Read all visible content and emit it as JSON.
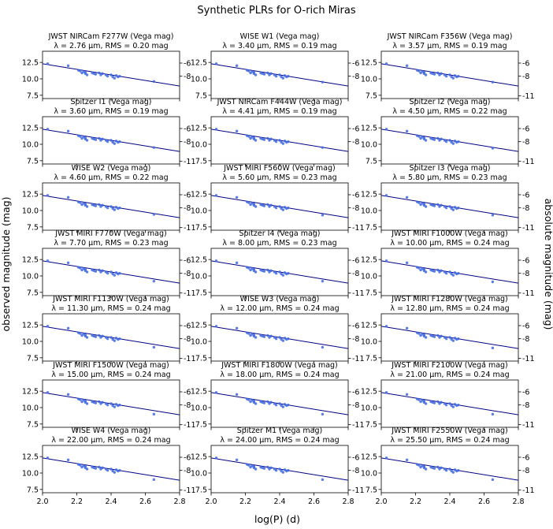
{
  "suptitle": "Synthetic PLRs for O-rich Miras",
  "xlabel": "log(P) (d)",
  "ylabel_left": "observed magnitude (mag)",
  "ylabel_right": "absolute magnitude (mag)",
  "colors": {
    "points": "#4169e1",
    "fit_line": "#000080",
    "axes": "#000000"
  },
  "chart_data": {
    "type": "scatter",
    "layout": {
      "rows": 7,
      "cols": 3
    },
    "x": [
      2.03,
      2.15,
      2.21,
      2.22,
      2.23,
      2.24,
      2.25,
      2.25,
      2.26,
      2.29,
      2.3,
      2.31,
      2.33,
      2.34,
      2.35,
      2.37,
      2.38,
      2.4,
      2.41,
      2.42,
      2.43,
      2.44,
      2.45,
      2.65
    ],
    "xlim": [
      2.0,
      2.8
    ],
    "xticks": [
      2.0,
      2.2,
      2.4,
      2.6,
      2.8
    ],
    "xticklabels": [
      "2.0",
      "2.2",
      "2.4",
      "2.6",
      "2.8"
    ],
    "ylim": [
      14.2,
      7.0
    ],
    "yticks": [
      7.5,
      10.0,
      12.5
    ],
    "yticklabels": [
      "7.5",
      "10.0",
      "12.5"
    ],
    "fit": {
      "x0": 2.0,
      "y0": 12.3,
      "x1": 2.8,
      "y1": 8.9
    },
    "abs_offset": 18.4,
    "right_ticks": [
      -11,
      -8,
      -6
    ],
    "right_ticklabels": [
      "-11",
      "-8",
      "-6"
    ],
    "panels": [
      {
        "title": "JWST NIRCam F277W (Vega mag)",
        "subtitle": "λ = 2.76 μm, RMS = 0.20 mag",
        "show_top_tick": false,
        "y": [
          12.3,
          12.0,
          11.3,
          11.2,
          10.9,
          11.1,
          10.8,
          11.0,
          10.6,
          10.9,
          10.8,
          10.7,
          10.9,
          10.6,
          10.8,
          10.6,
          10.4,
          10.6,
          10.3,
          10.1,
          10.5,
          10.3,
          10.4,
          9.6
        ]
      },
      {
        "title": "WISE W1 (Vega mag)",
        "subtitle": "λ = 3.40 μm, RMS = 0.19 mag",
        "show_top_tick": false,
        "y": [
          12.3,
          12.0,
          11.3,
          11.2,
          10.9,
          11.1,
          10.8,
          11.0,
          10.6,
          10.9,
          10.8,
          10.7,
          10.9,
          10.6,
          10.8,
          10.6,
          10.4,
          10.6,
          10.3,
          10.1,
          10.5,
          10.3,
          10.4,
          9.5
        ]
      },
      {
        "title": "JWST NIRCam F356W (Vega mag)",
        "subtitle": "λ = 3.57 μm, RMS = 0.19 mag",
        "show_top_tick": true,
        "y": [
          12.3,
          12.0,
          11.3,
          11.2,
          10.9,
          11.1,
          10.8,
          11.0,
          10.6,
          10.9,
          10.8,
          10.7,
          10.9,
          10.6,
          10.8,
          10.6,
          10.4,
          10.6,
          10.3,
          10.1,
          10.5,
          10.3,
          10.4,
          9.5
        ]
      },
      {
        "title": "Spitzer I1 (Vega mag)",
        "subtitle": "λ = 3.60 μm, RMS = 0.19 mag",
        "show_top_tick": true,
        "y": [
          12.3,
          12.0,
          11.3,
          11.2,
          10.9,
          11.1,
          10.8,
          11.0,
          10.6,
          10.9,
          10.8,
          10.7,
          10.9,
          10.6,
          10.8,
          10.6,
          10.4,
          10.6,
          10.3,
          10.1,
          10.5,
          10.3,
          10.4,
          9.5
        ]
      },
      {
        "title": "JWST NIRCam F444W (Vega mag)",
        "subtitle": "λ = 4.41 μm, RMS = 0.19 mag",
        "show_top_tick": false,
        "y": [
          12.3,
          12.0,
          11.3,
          11.2,
          10.9,
          11.1,
          10.8,
          11.0,
          10.6,
          10.9,
          10.8,
          10.7,
          10.9,
          10.6,
          10.8,
          10.6,
          10.4,
          10.6,
          10.3,
          10.1,
          10.5,
          10.3,
          10.4,
          9.5
        ]
      },
      {
        "title": "Spitzer I2 (Vega mag)",
        "subtitle": "λ = 4.50 μm, RMS = 0.22 mag",
        "show_top_tick": true,
        "y": [
          12.3,
          12.0,
          11.3,
          11.2,
          10.9,
          11.1,
          10.8,
          11.0,
          10.6,
          10.9,
          10.8,
          10.7,
          10.9,
          10.6,
          10.8,
          10.6,
          10.4,
          10.6,
          10.3,
          10.1,
          10.5,
          10.3,
          10.4,
          9.4
        ]
      },
      {
        "title": "WISE W2 (Vega mag)",
        "subtitle": "λ = 4.60 μm, RMS = 0.22 mag",
        "show_top_tick": true,
        "y": [
          12.3,
          12.0,
          11.3,
          11.2,
          10.9,
          11.1,
          10.8,
          11.0,
          10.6,
          10.9,
          10.8,
          10.7,
          10.9,
          10.6,
          10.8,
          10.6,
          10.4,
          10.6,
          10.3,
          10.1,
          10.5,
          10.3,
          10.4,
          9.4
        ]
      },
      {
        "title": "JWST MIRI F560W (Vega mag)",
        "subtitle": "λ = 5.60 μm, RMS = 0.23 mag",
        "show_top_tick": true,
        "y": [
          12.3,
          12.0,
          11.3,
          11.2,
          10.9,
          11.1,
          10.8,
          11.0,
          10.6,
          10.9,
          10.8,
          10.7,
          10.9,
          10.6,
          10.8,
          10.6,
          10.4,
          10.6,
          10.3,
          10.1,
          10.5,
          10.3,
          10.4,
          9.3
        ]
      },
      {
        "title": "Spitzer I3 (Vega mag)",
        "subtitle": "λ = 5.80 μm, RMS = 0.23 mag",
        "show_top_tick": true,
        "y": [
          12.3,
          12.0,
          11.3,
          11.2,
          10.9,
          11.1,
          10.8,
          11.0,
          10.6,
          10.9,
          10.8,
          10.7,
          10.9,
          10.6,
          10.8,
          10.6,
          10.4,
          10.6,
          10.3,
          10.1,
          10.5,
          10.3,
          10.4,
          9.3
        ]
      },
      {
        "title": "JWST MIRI F770W (Vega mag)",
        "subtitle": "λ = 7.70 μm, RMS = 0.23 mag",
        "show_top_tick": true,
        "y": [
          12.3,
          12.0,
          11.3,
          11.2,
          10.9,
          11.1,
          10.8,
          11.0,
          10.6,
          10.9,
          10.8,
          10.7,
          10.9,
          10.6,
          10.8,
          10.6,
          10.4,
          10.6,
          10.3,
          10.1,
          10.5,
          10.3,
          10.4,
          9.2
        ]
      },
      {
        "title": "Spitzer I4 (Vega mag)",
        "subtitle": "λ = 8.00 μm, RMS = 0.23 mag",
        "show_top_tick": true,
        "y": [
          12.3,
          12.0,
          11.3,
          11.2,
          10.9,
          11.1,
          10.8,
          11.0,
          10.6,
          10.9,
          10.8,
          10.7,
          10.9,
          10.6,
          10.8,
          10.6,
          10.4,
          10.6,
          10.3,
          10.1,
          10.5,
          10.3,
          10.4,
          9.2
        ]
      },
      {
        "title": "JWST MIRI F1000W (Vega mag)",
        "subtitle": "λ = 10.00 μm, RMS = 0.24 mag",
        "show_top_tick": true,
        "y": [
          12.3,
          12.0,
          11.3,
          11.2,
          10.9,
          11.1,
          10.8,
          11.0,
          10.6,
          10.9,
          10.8,
          10.7,
          10.9,
          10.6,
          10.8,
          10.6,
          10.4,
          10.6,
          10.3,
          10.1,
          10.5,
          10.3,
          10.4,
          9.1
        ]
      },
      {
        "title": "JWST MIRI F1130W (Vega mag)",
        "subtitle": "λ = 11.30 μm, RMS = 0.24 mag",
        "show_top_tick": true,
        "y": [
          12.3,
          12.0,
          11.3,
          11.2,
          10.9,
          11.1,
          10.8,
          11.0,
          10.6,
          10.9,
          10.8,
          10.7,
          10.9,
          10.6,
          10.8,
          10.6,
          10.4,
          10.6,
          10.3,
          10.1,
          10.5,
          10.3,
          10.4,
          9.1
        ]
      },
      {
        "title": "WISE W3 (Vega mag)",
        "subtitle": "λ = 12.00 μm, RMS = 0.24 mag",
        "show_top_tick": true,
        "y": [
          12.3,
          12.0,
          11.3,
          11.2,
          10.9,
          11.1,
          10.8,
          11.0,
          10.6,
          10.9,
          10.8,
          10.7,
          10.9,
          10.6,
          10.8,
          10.6,
          10.4,
          10.6,
          10.3,
          10.1,
          10.5,
          10.3,
          10.4,
          9.1
        ]
      },
      {
        "title": "JWST MIRI F1280W (Vega mag)",
        "subtitle": "λ = 12.80 μm, RMS = 0.24 mag",
        "show_top_tick": true,
        "y": [
          12.3,
          12.0,
          11.3,
          11.2,
          10.9,
          11.1,
          10.8,
          11.0,
          10.6,
          10.9,
          10.8,
          10.7,
          10.9,
          10.6,
          10.8,
          10.6,
          10.4,
          10.6,
          10.3,
          10.1,
          10.5,
          10.3,
          10.4,
          9.0
        ]
      },
      {
        "title": "JWST MIRI F1500W (Vega mag)",
        "subtitle": "λ = 15.00 μm, RMS = 0.24 mag",
        "show_top_tick": true,
        "y": [
          12.3,
          12.0,
          11.3,
          11.2,
          10.9,
          11.1,
          10.8,
          11.0,
          10.6,
          10.9,
          10.8,
          10.7,
          10.9,
          10.6,
          10.8,
          10.6,
          10.4,
          10.6,
          10.3,
          10.1,
          10.5,
          10.3,
          10.4,
          9.0
        ]
      },
      {
        "title": "JWST MIRI F1800W (Vega mag)",
        "subtitle": "λ = 18.00 μm, RMS = 0.24 mag",
        "show_top_tick": true,
        "y": [
          12.3,
          12.0,
          11.3,
          11.2,
          10.9,
          11.1,
          10.8,
          11.0,
          10.6,
          10.9,
          10.8,
          10.7,
          10.9,
          10.6,
          10.8,
          10.6,
          10.4,
          10.6,
          10.3,
          10.1,
          10.5,
          10.3,
          10.4,
          9.0
        ]
      },
      {
        "title": "JWST MIRI F2100W (Vega mag)",
        "subtitle": "λ = 21.00 μm, RMS = 0.24 mag",
        "show_top_tick": true,
        "y": [
          12.3,
          12.0,
          11.3,
          11.2,
          10.9,
          11.1,
          10.8,
          11.0,
          10.6,
          10.9,
          10.8,
          10.7,
          10.9,
          10.6,
          10.8,
          10.6,
          10.4,
          10.6,
          10.3,
          10.1,
          10.5,
          10.3,
          10.4,
          9.0
        ]
      },
      {
        "title": "WISE W4 (Vega mag)",
        "subtitle": "λ = 22.00 μm, RMS = 0.24 mag",
        "show_top_tick": true,
        "y": [
          12.3,
          12.0,
          11.3,
          11.2,
          10.9,
          11.1,
          10.8,
          11.0,
          10.6,
          10.9,
          10.8,
          10.7,
          10.9,
          10.6,
          10.8,
          10.6,
          10.4,
          10.6,
          10.3,
          10.1,
          10.5,
          10.3,
          10.4,
          9.0
        ]
      },
      {
        "title": "Spitzer M1 (Vega mag)",
        "subtitle": "λ = 24.00 μm, RMS = 0.24 mag",
        "show_top_tick": true,
        "y": [
          12.3,
          12.0,
          11.3,
          11.2,
          10.9,
          11.1,
          10.8,
          11.0,
          10.6,
          10.9,
          10.8,
          10.7,
          10.9,
          10.6,
          10.8,
          10.6,
          10.4,
          10.6,
          10.3,
          10.1,
          10.5,
          10.3,
          10.4,
          9.0
        ]
      },
      {
        "title": "JWST MIRI F2550W (Vega mag)",
        "subtitle": "λ = 25.50 μm, RMS = 0.24 mag",
        "show_top_tick": true,
        "y": [
          12.3,
          12.0,
          11.3,
          11.2,
          10.9,
          11.1,
          10.8,
          11.0,
          10.6,
          10.9,
          10.8,
          10.7,
          10.9,
          10.6,
          10.8,
          10.6,
          10.4,
          10.6,
          10.3,
          10.1,
          10.5,
          10.3,
          10.4,
          9.0
        ]
      }
    ]
  }
}
